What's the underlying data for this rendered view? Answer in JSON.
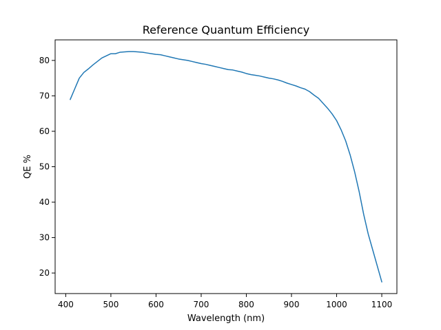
{
  "chart_data": {
    "type": "line",
    "title": "Reference Quantum Efficiency",
    "xlabel": "Wavelength (nm)",
    "ylabel": "QE %",
    "xlim": [
      376.5,
      1133.5
    ],
    "ylim": [
      14.2,
      85.8
    ],
    "grid": false,
    "xticks": [
      400,
      500,
      600,
      700,
      800,
      900,
      1000,
      1100
    ],
    "yticks": [
      20,
      30,
      40,
      50,
      60,
      70,
      80
    ],
    "series": [
      {
        "color": "#1f77b4",
        "x": [
          410,
          420,
          430,
          440,
          450,
          460,
          470,
          480,
          490,
          500,
          510,
          520,
          530,
          540,
          550,
          560,
          570,
          580,
          590,
          600,
          610,
          620,
          630,
          640,
          650,
          660,
          670,
          680,
          690,
          700,
          710,
          720,
          730,
          740,
          750,
          760,
          770,
          780,
          790,
          800,
          810,
          820,
          830,
          840,
          850,
          860,
          870,
          880,
          890,
          900,
          910,
          920,
          930,
          940,
          950,
          960,
          970,
          980,
          990,
          1000,
          1010,
          1020,
          1030,
          1040,
          1050,
          1060,
          1070,
          1080,
          1090,
          1100
        ],
        "y": [
          69.0,
          72.0,
          75.0,
          76.6,
          77.6,
          78.7,
          79.7,
          80.7,
          81.3,
          81.9,
          81.9,
          82.3,
          82.4,
          82.5,
          82.5,
          82.4,
          82.3,
          82.1,
          81.9,
          81.7,
          81.6,
          81.3,
          81.0,
          80.7,
          80.4,
          80.2,
          80.0,
          79.7,
          79.4,
          79.1,
          78.9,
          78.6,
          78.3,
          78.0,
          77.7,
          77.4,
          77.3,
          77.0,
          76.7,
          76.3,
          76.0,
          75.8,
          75.6,
          75.3,
          75.0,
          74.8,
          74.5,
          74.1,
          73.6,
          73.2,
          72.8,
          72.3,
          71.9,
          71.2,
          70.2,
          69.3,
          67.9,
          66.5,
          64.9,
          63.0,
          60.4,
          57.3,
          53.3,
          48.5,
          42.9,
          36.5,
          31.0,
          26.5,
          22.0,
          17.5
        ]
      }
    ]
  }
}
